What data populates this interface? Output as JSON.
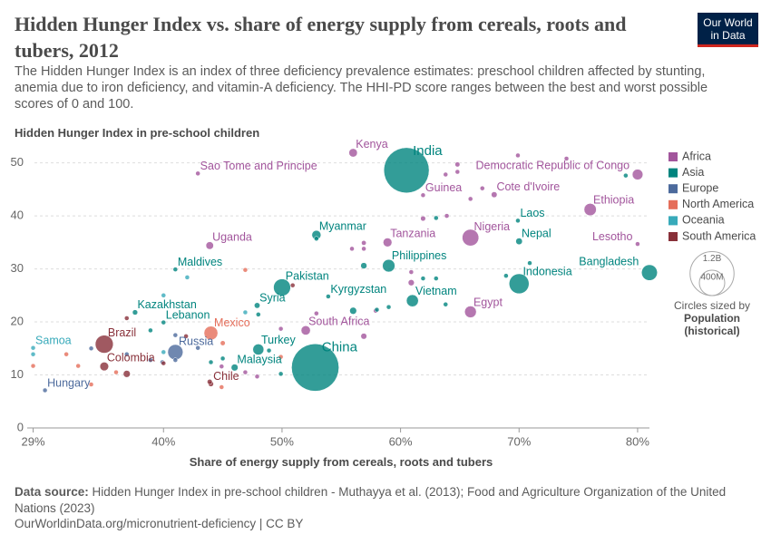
{
  "chart_data": {
    "type": "scatter",
    "title": "Hidden Hunger Index vs. share of energy supply from cereals, roots and tubers, 2012",
    "subtitle": "The Hidden Hunger Index is an index of three deficiency prevalence estimates: preschool children affected by stunting, anemia due to iron deficiency, and vitamin-A deficiency. The HHI-PD score ranges between the best and worst possible scores of 0 and 100.",
    "y_label": "Hidden Hunger Index in pre-school children",
    "x_label": "Share of energy supply from cereals, roots and tubers",
    "source_label": "Data source:",
    "source": "Hidden Hunger Index in pre-school children - Muthayya et al. (2013); Food and Agriculture Organization of the United Nations (2023)",
    "footer": "OurWorldinData.org/micronutrient-deficiency | CC BY",
    "logo": [
      "Our World",
      "in Data"
    ],
    "xlim": [
      28.5,
      81
    ],
    "ylim": [
      0,
      52.5
    ],
    "xticks": [
      {
        "value": 29,
        "label": "29%"
      },
      {
        "value": 40,
        "label": "40%"
      },
      {
        "value": 50,
        "label": "50%"
      },
      {
        "value": 60,
        "label": "60%"
      },
      {
        "value": 70,
        "label": "70%"
      },
      {
        "value": 80,
        "label": "80%"
      }
    ],
    "yticks": [
      0,
      10,
      20,
      30,
      40,
      50
    ],
    "grid": true,
    "legend": "right",
    "size_legend": {
      "title": "Circles sized by",
      "variable": "Population (historical)",
      "ticks": [
        {
          "value": 1200000000,
          "label": "1.2B"
        },
        {
          "value": 400000000,
          "label": "400M"
        }
      ]
    },
    "series": [
      {
        "name": "Africa",
        "color": "#a2559c",
        "labels": [
          "Kenya",
          "Sao Tome and Principe",
          "Democratic Republic of Congo",
          "Cote d'Ivoire",
          "Guinea",
          "Ethiopia",
          "Nigeria",
          "Tanzania",
          "Uganda",
          "Lesotho",
          "Egypt",
          "South Africa",
          null,
          null,
          null,
          null,
          null,
          null,
          null,
          null,
          null,
          null,
          null,
          null,
          null,
          null,
          null,
          null,
          null,
          null,
          null,
          null,
          null
        ],
        "x": [
          56,
          42.9,
          80,
          67.9,
          61.9,
          76,
          65.9,
          58.9,
          43.9,
          80,
          65.9,
          52,
          64.8,
          64.8,
          63.8,
          69.9,
          74,
          66.9,
          65.9,
          63.9,
          61.9,
          56.9,
          56.9,
          55.9,
          60.9,
          60.9,
          56.9,
          52.9,
          49.9,
          46.9,
          47.9,
          44.9,
          57.9
        ],
        "values": [
          51.9,
          48,
          47.8,
          44,
          43.9,
          41.2,
          35.9,
          35,
          34.4,
          34.7,
          21.9,
          18.4,
          49.7,
          48.3,
          47.8,
          51.4,
          50.8,
          45.2,
          43.2,
          40,
          39.5,
          34.9,
          33.8,
          33.8,
          29.4,
          27.4,
          17.3,
          21.6,
          18.7,
          10.5,
          9.7,
          11.6,
          22.1
        ],
        "sizes": [
          44000000,
          180000,
          70000000,
          21000000,
          11000000,
          93000000,
          170000000,
          48000000,
          36000000,
          2000000,
          85000000,
          53000000,
          15000000,
          6000000,
          10000000,
          4000000,
          8000000,
          12000000,
          3000000,
          13000000,
          16000000,
          14000000,
          9000000,
          2000000,
          4000000,
          23000000,
          22000000,
          1000000,
          2000000,
          1000000,
          1500000,
          900000,
          3000000
        ]
      },
      {
        "name": "Asia",
        "color": "#00847e",
        "labels": [
          "India",
          "China",
          "Laos",
          "Myanmar",
          "Nepal",
          "Maldives",
          "Philippines",
          "Bangladesh",
          "Indonesia",
          "Pakistan",
          "Kyrgyzstan",
          "Vietnam",
          "Kazakhstan",
          "Syria",
          "Lebanon",
          "Turkey",
          "Malaysia",
          null,
          null,
          null,
          null,
          null,
          null,
          null,
          null,
          null,
          null,
          null,
          null,
          null,
          null,
          null,
          null,
          null,
          null
        ],
        "x": [
          60.5,
          52.8,
          69.9,
          52.9,
          70,
          41,
          59,
          81,
          70,
          50,
          53.9,
          61,
          37.6,
          47.9,
          40,
          48,
          46,
          79,
          63,
          68.9,
          63,
          61.9,
          63.8,
          56.9,
          52.9,
          58,
          56,
          49.9,
          48.9,
          45,
          48,
          44,
          38.9,
          59,
          70.9
        ],
        "values": [
          48.6,
          11.4,
          39.1,
          36.4,
          35.2,
          29.9,
          30.6,
          29.3,
          27.2,
          26.5,
          24.8,
          24,
          21.8,
          23.1,
          19.9,
          14.8,
          11.4,
          47.6,
          39.6,
          28.7,
          28.2,
          28.2,
          23.3,
          30.6,
          35.7,
          22.3,
          22.1,
          10.2,
          14.6,
          13.1,
          21.4,
          12.4,
          18.4,
          22.8,
          31.1
        ],
        "sizes": [
          1270000000,
          1390000000,
          6500000,
          51000000,
          27000000,
          350000,
          97000000,
          154000000,
          246000000,
          180000000,
          5600000,
          89000000,
          17000000,
          20000000,
          4600000,
          75000000,
          29000000,
          3000000,
          8000000,
          2000000,
          5000000,
          7000000,
          3000000,
          24000000,
          9000000,
          3000000,
          30000000,
          4000000,
          6000000,
          1000000,
          3000000,
          2500000,
          8000000,
          2000000,
          1500000
        ]
      },
      {
        "name": "Europe",
        "color": "#4c6a9c",
        "labels": [
          "Russia",
          "Hungary",
          null,
          null,
          null,
          null,
          null,
          null,
          null
        ],
        "x": [
          41,
          30,
          33.9,
          36.9,
          38.9,
          39.9,
          41,
          42.9,
          41
        ],
        "values": [
          14.3,
          7.1,
          15,
          13.9,
          12.8,
          12.4,
          12.8,
          15.1,
          17.5
        ],
        "sizes": [
          143000000,
          10000000,
          4000000,
          7000000,
          5000000,
          3000000,
          9000000,
          2000000,
          4500000
        ]
      },
      {
        "name": "North America",
        "color": "#e56e5a",
        "labels": [
          "Mexico",
          null,
          null,
          null,
          null,
          null,
          null,
          null,
          null,
          null
        ],
        "x": [
          44,
          29,
          31.8,
          32.8,
          33.9,
          36,
          46.9,
          45,
          44.9,
          49.9
        ],
        "values": [
          17.9,
          11.7,
          13.9,
          11.7,
          8.2,
          10.5,
          29.8,
          16,
          7.7,
          13.4
        ],
        "sizes": [
          118000000,
          3000000,
          1000000,
          4500000,
          6000000,
          8000000,
          10000000,
          15000000,
          4000000,
          6000000
        ]
      },
      {
        "name": "Oceania",
        "color": "#38aaba",
        "labels": [
          "Samoa",
          null,
          null,
          null,
          null,
          null
        ],
        "x": [
          29,
          42,
          40,
          46.9,
          40,
          29
        ],
        "values": [
          15.1,
          28.4,
          25,
          21.8,
          14.3,
          13.9
        ],
        "sizes": [
          190000,
          7000000,
          500000,
          250000,
          900000,
          100000
        ]
      },
      {
        "name": "South America",
        "color": "#883039",
        "labels": [
          "Brazil",
          "Colombia",
          "Chile",
          null,
          null,
          null,
          null,
          null,
          null
        ],
        "x": [
          35,
          35,
          44,
          36.9,
          41.9,
          50.9,
          40,
          36.9,
          43.9
        ],
        "values": [
          15.8,
          11.6,
          8.3,
          20.7,
          17.3,
          26.9,
          12.2,
          10.2,
          8.7
        ],
        "sizes": [
          200000000,
          47000000,
          17500000,
          10000000,
          6500000,
          800000,
          3400000,
          30000000,
          16000000
        ]
      }
    ]
  }
}
